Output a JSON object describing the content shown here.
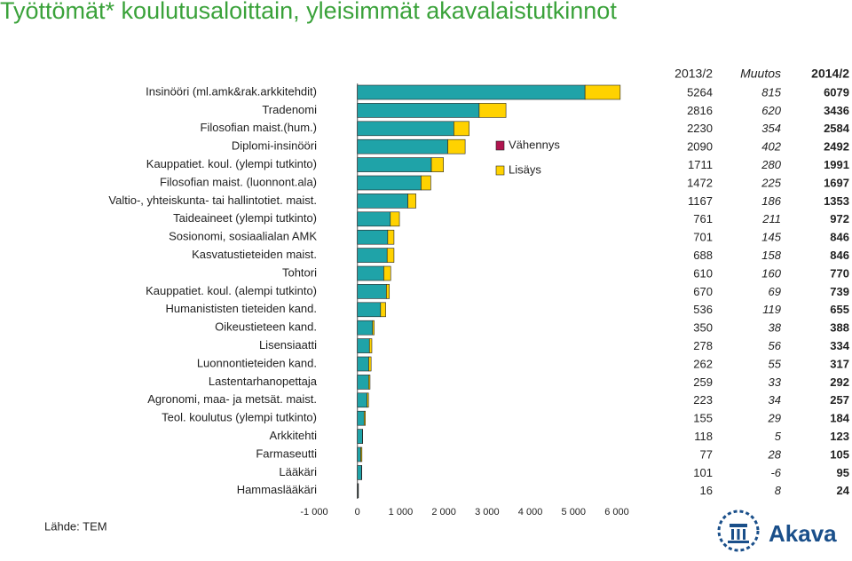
{
  "chart_data": {
    "type": "bar",
    "title": "Työttömät* koulutusaloittain, yleisimmät akavalaistutkinnot",
    "source": "Lähde: TEM",
    "logo": "Akava",
    "categories": [
      "Insinööri (ml.amk&rak.arkkitehdit)",
      "Tradenomi",
      "Filosofian maist.(hum.)",
      "Diplomi-insinööri",
      "Kauppatiet. koul. (ylempi tutkinto)",
      "Filosofian maist. (luonnont.ala)",
      "Valtio-, yhteiskunta- tai hallintotiet. maist.",
      "Taideaineet (ylempi tutkinto)",
      "Sosionomi, sosiaalialan AMK",
      "Kasvatustieteiden maist.",
      "Tohtori",
      "Kauppatiet. koul. (alempi tutkinto)",
      "Humanististen tieteiden kand.",
      "Oikeustieteen kand.",
      "Lisensiaatti",
      "Luonnontieteiden kand.",
      "Lastentarhanopettaja",
      "Agronomi, maa- ja metsät. maist.",
      "Teol. koulutus (ylempi tutkinto)",
      "Arkkitehti",
      "Farmaseutti",
      "Lääkäri",
      "Hammaslääkäri"
    ],
    "columns": [
      "2013/2",
      "Muutos",
      "2014/2"
    ],
    "base": [
      5264,
      2816,
      2230,
      2090,
      1711,
      1472,
      1167,
      761,
      701,
      688,
      610,
      670,
      536,
      350,
      278,
      262,
      259,
      223,
      155,
      118,
      77,
      101,
      16
    ],
    "change": [
      815,
      620,
      354,
      402,
      280,
      225,
      186,
      211,
      145,
      158,
      160,
      69,
      119,
      38,
      56,
      55,
      33,
      34,
      29,
      5,
      28,
      -6,
      8
    ],
    "total": [
      6079,
      3436,
      2584,
      2492,
      1991,
      1697,
      1353,
      972,
      846,
      846,
      770,
      739,
      655,
      388,
      334,
      317,
      292,
      257,
      184,
      123,
      105,
      95,
      24
    ],
    "base_color": "#1fa3a8",
    "legend": [
      {
        "name": "Vähennys",
        "color": "#b0154f"
      },
      {
        "name": "Lisäys",
        "color": "#ffd200"
      }
    ],
    "xlim": [
      -1000,
      6000
    ],
    "xticks": [
      {
        "value": -1000,
        "label": "-1 000"
      },
      0,
      {
        "value": 1000,
        "label": "1 000"
      },
      {
        "value": 2000,
        "label": "2 000"
      },
      {
        "value": 3000,
        "label": "3 000"
      },
      {
        "value": 4000,
        "label": "4 000"
      },
      {
        "value": 5000,
        "label": "5 000"
      },
      {
        "value": 6000,
        "label": "6 000"
      }
    ]
  }
}
